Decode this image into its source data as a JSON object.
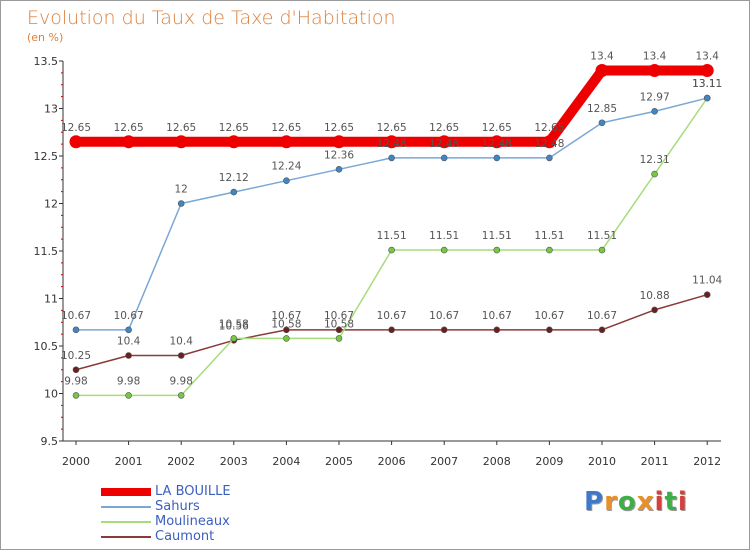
{
  "title": "Evolution du Taux de Taxe d'Habitation",
  "unit_label": "(en %)",
  "logo": {
    "text": "Proxiti",
    "letters": [
      "P",
      "r",
      "o",
      "x",
      "i",
      "t",
      "i"
    ],
    "colors": [
      "#3f79c8",
      "#e7902c",
      "#3fae49",
      "#e7902c",
      "#d6403a",
      "#3fae49",
      "#d6403a"
    ]
  },
  "colors": {
    "title": "#de7f3a",
    "axis": "#333333",
    "grid_tick": "#cc0000",
    "legend_text": "#3b5fbf"
  },
  "chart_data": {
    "type": "line",
    "title": "Evolution du Taux de Taxe d'Habitation",
    "ylabel": "(en %)",
    "xlabel": "",
    "x": [
      "2000",
      "2001",
      "2002",
      "2003",
      "2004",
      "2005",
      "2006",
      "2007",
      "2008",
      "2009",
      "2010",
      "2011",
      "2012"
    ],
    "ylim": [
      9.5,
      13.5
    ],
    "yticks": [
      "9.5",
      "10",
      "10.5",
      "11",
      "11.5",
      "12",
      "12.5",
      "13",
      "13.5"
    ],
    "ytick_values": [
      9.5,
      10,
      10.5,
      11,
      11.5,
      12,
      12.5,
      13,
      13.5
    ],
    "grid": false,
    "legend_position": "bottom-left",
    "series": [
      {
        "name": "LA BOUILLE",
        "color": "#ee0000",
        "marker": "#ee0000",
        "thick": true,
        "values": [
          12.65,
          12.65,
          12.65,
          12.65,
          12.65,
          12.65,
          12.65,
          12.65,
          12.65,
          12.65,
          13.4,
          13.4,
          13.4
        ],
        "labels": [
          "12.65",
          "12.65",
          "12.65",
          "12.65",
          "12.65",
          "12.65",
          "12.65",
          "12.65",
          "12.65",
          "12.65",
          "13.4",
          "13.4",
          "13.4"
        ]
      },
      {
        "name": "Sahurs",
        "color": "#7ba7d4",
        "marker": "#3f86c8",
        "values": [
          10.67,
          10.67,
          12,
          12.12,
          12.24,
          12.36,
          12.48,
          12.48,
          12.48,
          12.48,
          12.85,
          12.97,
          13.11
        ],
        "labels": [
          "10.67",
          "10.67",
          "12",
          "12.12",
          "12.24",
          "12.36",
          "12.48",
          "12.48",
          "12.48",
          "12.48",
          "12.85",
          "12.97",
          "13.11"
        ]
      },
      {
        "name": "Moulineaux",
        "color": "#a6dc7a",
        "marker": "#76c843",
        "values": [
          9.98,
          9.98,
          9.98,
          10.58,
          10.58,
          10.58,
          11.51,
          11.51,
          11.51,
          11.51,
          11.51,
          12.31,
          13.11
        ],
        "labels": [
          "9.98",
          "9.98",
          "9.98",
          "10.58",
          "10.58",
          "10.58",
          "11.51",
          "11.51",
          "11.51",
          "11.51",
          "11.51",
          "12.31",
          "13.11"
        ]
      },
      {
        "name": "Caumont",
        "color": "#8a3a3a",
        "marker": "#6b1f1f",
        "values": [
          10.25,
          10.4,
          10.4,
          10.56,
          10.67,
          10.67,
          10.67,
          10.67,
          10.67,
          10.67,
          10.67,
          10.88,
          11.04
        ],
        "labels": [
          "10.25",
          "10.4",
          "10.4",
          "10.56",
          "10.67",
          "10.67",
          "10.67",
          "10.67",
          "10.67",
          "10.67",
          "10.67",
          "10.88",
          "11.04"
        ]
      }
    ]
  }
}
